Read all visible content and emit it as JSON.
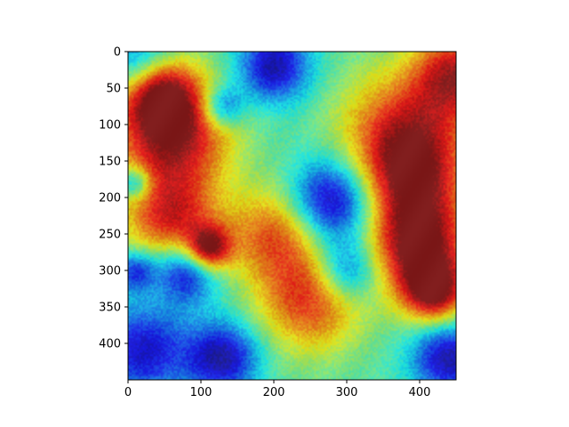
{
  "chart_data": {
    "type": "heatmap",
    "title": "",
    "xlabel": "",
    "ylabel": "",
    "xlim": [
      0,
      450
    ],
    "ylim": [
      450,
      0
    ],
    "x_ticks": [
      0,
      100,
      200,
      300,
      400
    ],
    "y_ticks": [
      0,
      50,
      100,
      150,
      200,
      250,
      300,
      350,
      400
    ],
    "x_tick_labels": [
      "0",
      "100",
      "200",
      "300",
      "400"
    ],
    "y_tick_labels": [
      "0",
      "50",
      "100",
      "150",
      "200",
      "250",
      "300",
      "350",
      "400"
    ],
    "colormap": "jet",
    "grid": false,
    "description_hint": "Grad-CAM style jet heatmap overlaid on a bird photo",
    "hotspots": [
      {
        "x": 60,
        "y": 110,
        "intensity": 1.0,
        "spread": 55
      },
      {
        "x": 40,
        "y": 50,
        "intensity": 0.9,
        "spread": 35
      },
      {
        "x": 110,
        "y": 270,
        "intensity": 0.95,
        "spread": 22
      },
      {
        "x": 400,
        "y": 270,
        "intensity": 1.0,
        "spread": 45
      },
      {
        "x": 420,
        "y": 330,
        "intensity": 0.9,
        "spread": 30
      },
      {
        "x": 380,
        "y": 110,
        "intensity": 0.75,
        "spread": 60
      },
      {
        "x": 450,
        "y": 30,
        "intensity": 0.8,
        "spread": 40
      },
      {
        "x": 390,
        "y": 180,
        "intensity": 0.7,
        "spread": 50
      },
      {
        "x": 250,
        "y": 340,
        "intensity": 0.7,
        "spread": 50
      },
      {
        "x": 60,
        "y": 230,
        "intensity": 0.75,
        "spread": 45
      },
      {
        "x": 200,
        "y": 250,
        "intensity": 0.6,
        "spread": 45
      }
    ],
    "coldspots": [
      {
        "x": 280,
        "y": 205,
        "intensity": 1.0,
        "spread": 40
      },
      {
        "x": 80,
        "y": 300,
        "intensity": 0.9,
        "spread": 30
      },
      {
        "x": 20,
        "y": 20,
        "intensity": 0.8,
        "spread": 35
      },
      {
        "x": 200,
        "y": 20,
        "intensity": 0.9,
        "spread": 35
      },
      {
        "x": 20,
        "y": 410,
        "intensity": 0.8,
        "spread": 45
      },
      {
        "x": 130,
        "y": 420,
        "intensity": 0.9,
        "spread": 35
      },
      {
        "x": 440,
        "y": 420,
        "intensity": 0.9,
        "spread": 35
      },
      {
        "x": 130,
        "y": 75,
        "intensity": 0.7,
        "spread": 20
      },
      {
        "x": 300,
        "y": 300,
        "intensity": 0.7,
        "spread": 30
      },
      {
        "x": 10,
        "y": 300,
        "intensity": 0.7,
        "spread": 20
      },
      {
        "x": 10,
        "y": 180,
        "intensity": 0.7,
        "spread": 15
      }
    ]
  }
}
